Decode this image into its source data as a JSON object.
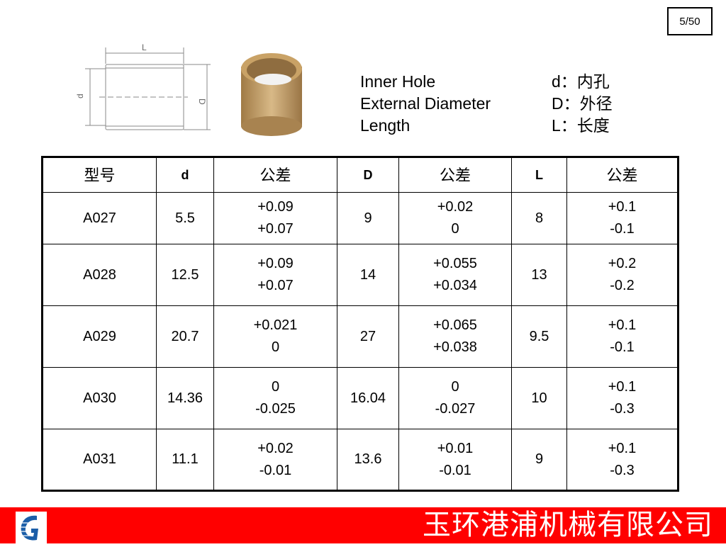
{
  "page_number": "5/50",
  "diagram": {
    "label_L": "L",
    "label_d": "d",
    "label_D": "D"
  },
  "legend": [
    {
      "en": "Inner Hole",
      "cn": "d：内孔"
    },
    {
      "en": "External Diameter",
      "cn": "D：外径"
    },
    {
      "en": "Length",
      "cn": "L：长度"
    }
  ],
  "table": {
    "headers": [
      "型号",
      "d",
      "公差",
      "D",
      "公差",
      "L",
      "公差"
    ],
    "rows": [
      [
        "A027",
        "5.5",
        [
          "+0.09",
          "+0.07"
        ],
        "9",
        [
          "+0.02",
          "0"
        ],
        "8",
        [
          "+0.1",
          "-0.1"
        ]
      ],
      [
        "A028",
        "12.5",
        [
          "+0.09",
          "+0.07"
        ],
        "14",
        [
          "+0.055",
          "+0.034"
        ],
        "13",
        [
          "+0.2",
          "-0.2"
        ]
      ],
      [
        "A029",
        "20.7",
        [
          "+0.021",
          "0"
        ],
        "27",
        [
          "+0.065",
          "+0.038"
        ],
        "9.5",
        [
          "+0.1",
          "-0.1"
        ]
      ],
      [
        "A030",
        "14.36",
        [
          "0",
          "-0.025"
        ],
        "16.04",
        [
          "0",
          "-0.027"
        ],
        "10",
        [
          "+0.1",
          "-0.3"
        ]
      ],
      [
        "A031",
        "11.1",
        [
          "+0.02",
          "-0.01"
        ],
        "13.6",
        [
          "+0.01",
          "-0.01"
        ],
        "9",
        [
          "+0.1",
          "-0.3"
        ]
      ]
    ]
  },
  "footer": {
    "company": "玉环港浦机械有限公司",
    "color": "#ff0000"
  }
}
